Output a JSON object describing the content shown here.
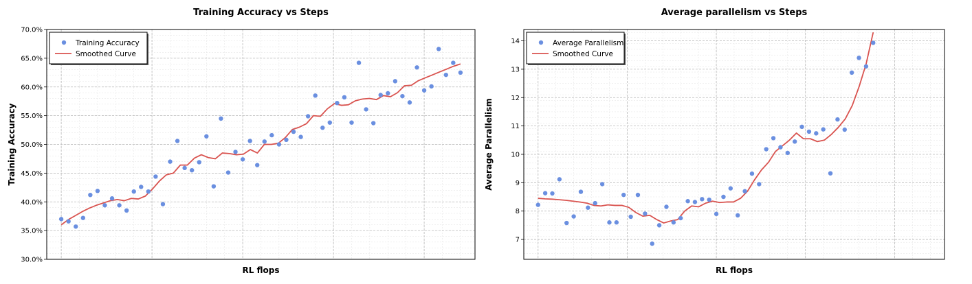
{
  "chart_data": [
    {
      "type": "scatter",
      "title": "Training Accuracy vs Steps",
      "xlabel": "RL flops",
      "ylabel": "Training Accuracy",
      "ylim": [
        30.0,
        70.0
      ],
      "yticks": [
        30.0,
        35.0,
        40.0,
        45.0,
        50.0,
        55.0,
        60.0,
        65.0,
        70.0
      ],
      "ytick_labels": [
        "30.0%",
        "35.0%",
        "40.0%",
        "45.0%",
        "50.0%",
        "55.0%",
        "60.0%",
        "65.0%",
        "70.0%"
      ],
      "xlim": [
        -2,
        57
      ],
      "xgrid_major": [
        0,
        12.5,
        25,
        37.5,
        50
      ],
      "grid": true,
      "legend": "top-left",
      "series": [
        {
          "name": "Training Accuracy",
          "kind": "points",
          "color": "#6a8fe0",
          "values": [
            37.0,
            36.6,
            35.7,
            37.2,
            41.2,
            41.9,
            39.4,
            40.6,
            39.4,
            38.5,
            41.8,
            42.6,
            41.8,
            44.4,
            39.6,
            47.0,
            50.6,
            45.9,
            45.5,
            46.9,
            51.4,
            42.7,
            54.5,
            45.1,
            48.7,
            47.4,
            50.6,
            46.4,
            50.5,
            51.6,
            50.0,
            50.8,
            52.2,
            51.3,
            54.9,
            58.5,
            52.9,
            53.8,
            57.2,
            58.2,
            53.8,
            64.2,
            56.1,
            53.7,
            58.6,
            58.9,
            61.0,
            58.4,
            57.3,
            63.4,
            59.4,
            60.1,
            66.6,
            62.1,
            64.2,
            62.5
          ]
        },
        {
          "name": "Smoothed Curve",
          "kind": "line",
          "color": "#d9534f",
          "values": [
            36.0,
            36.9,
            37.6,
            38.3,
            38.9,
            39.4,
            39.8,
            40.2,
            40.4,
            40.2,
            40.6,
            40.5,
            41.0,
            42.2,
            43.6,
            44.7,
            45.0,
            46.4,
            46.4,
            47.6,
            48.2,
            47.7,
            47.5,
            48.5,
            48.4,
            48.2,
            48.3,
            49.1,
            48.5,
            50.0,
            50.0,
            50.2,
            51.2,
            52.6,
            53.0,
            53.6,
            55.0,
            54.9,
            56.2,
            57.1,
            56.8,
            56.9,
            57.6,
            57.9,
            58.0,
            57.8,
            58.5,
            58.3,
            59.0,
            60.2,
            60.3,
            61.1,
            61.6,
            62.1,
            62.6,
            63.1,
            63.6,
            64.0
          ]
        }
      ]
    },
    {
      "type": "scatter",
      "title": "Average parallelism vs Steps",
      "xlabel": "RL flops",
      "ylabel": "Average Parallelism",
      "ylim": [
        6.3,
        14.4
      ],
      "yticks": [
        7,
        8,
        9,
        10,
        11,
        12,
        13,
        14
      ],
      "ytick_labels": [
        "7",
        "8",
        "9",
        "10",
        "11",
        "12",
        "13",
        "14"
      ],
      "xlim": [
        -2,
        57
      ],
      "xgrid_major": [
        0,
        12.5,
        25,
        37.5,
        50
      ],
      "grid": true,
      "legend": "top-left",
      "series": [
        {
          "name": "Average Parallelism",
          "kind": "points",
          "color": "#6a8fe0",
          "values": [
            8.22,
            8.63,
            8.62,
            9.12,
            7.58,
            7.81,
            8.68,
            8.12,
            8.28,
            8.95,
            7.6,
            7.6,
            8.57,
            7.8,
            8.57,
            7.91,
            6.85,
            7.5,
            8.15,
            7.6,
            7.75,
            8.35,
            8.32,
            8.42,
            8.4,
            7.9,
            8.5,
            8.8,
            7.85,
            8.7,
            9.32,
            8.95,
            10.18,
            10.57,
            10.25,
            10.05,
            10.45,
            10.97,
            10.8,
            10.74,
            10.88,
            9.33,
            11.23,
            10.87,
            12.88,
            13.4,
            13.1,
            13.93
          ]
        },
        {
          "name": "Smoothed Curve",
          "kind": "line",
          "color": "#d9534f",
          "values": [
            8.45,
            8.43,
            8.42,
            8.4,
            8.38,
            8.35,
            8.32,
            8.28,
            8.2,
            8.18,
            8.22,
            8.2,
            8.2,
            8.13,
            7.95,
            7.82,
            7.85,
            7.7,
            7.58,
            7.65,
            7.7,
            8.0,
            8.18,
            8.15,
            8.28,
            8.35,
            8.3,
            8.32,
            8.32,
            8.45,
            8.7,
            9.1,
            9.45,
            9.72,
            10.1,
            10.3,
            10.5,
            10.75,
            10.55,
            10.55,
            10.45,
            10.5,
            10.7,
            10.95,
            11.25,
            11.72,
            12.4,
            13.2,
            14.3
          ]
        }
      ]
    }
  ]
}
